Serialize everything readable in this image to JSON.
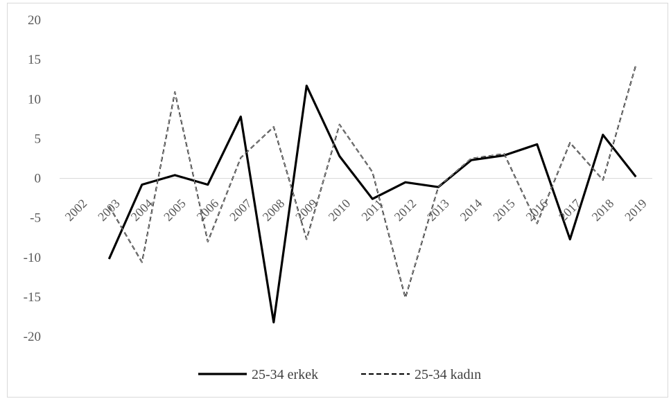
{
  "chart_data": {
    "type": "line",
    "title": "",
    "xlabel": "",
    "ylabel": "",
    "categories": [
      "2002",
      "2003",
      "2004",
      "2005",
      "2006",
      "2007",
      "2008",
      "2009",
      "2010",
      "2011",
      "2012",
      "2013",
      "2014",
      "2015",
      "2016",
      "2017",
      "2018",
      "2019"
    ],
    "ylim": [
      -20,
      20
    ],
    "yticks": [
      "20",
      "15",
      "10",
      "5",
      "0",
      "-5",
      "-10",
      "-15",
      "-20"
    ],
    "grid": false,
    "legend_position": "bottom",
    "series": [
      {
        "name": "25-34 erkek",
        "style": "solid",
        "color": "#000000",
        "values": [
          null,
          -10.2,
          -0.8,
          0.4,
          -0.8,
          7.8,
          -18.2,
          11.7,
          2.8,
          -2.6,
          -0.5,
          -1.1,
          2.3,
          2.9,
          4.3,
          -7.7,
          5.5,
          0.2
        ]
      },
      {
        "name": "25-34 kadın",
        "style": "dashed",
        "color": "#000000",
        "values": [
          null,
          -3.5,
          -10.6,
          10.9,
          -8.0,
          2.6,
          6.5,
          -7.7,
          6.8,
          0.8,
          -15.1,
          -1.1,
          2.5,
          3.1,
          -5.7,
          4.5,
          -0.2,
          14.3
        ]
      }
    ]
  }
}
